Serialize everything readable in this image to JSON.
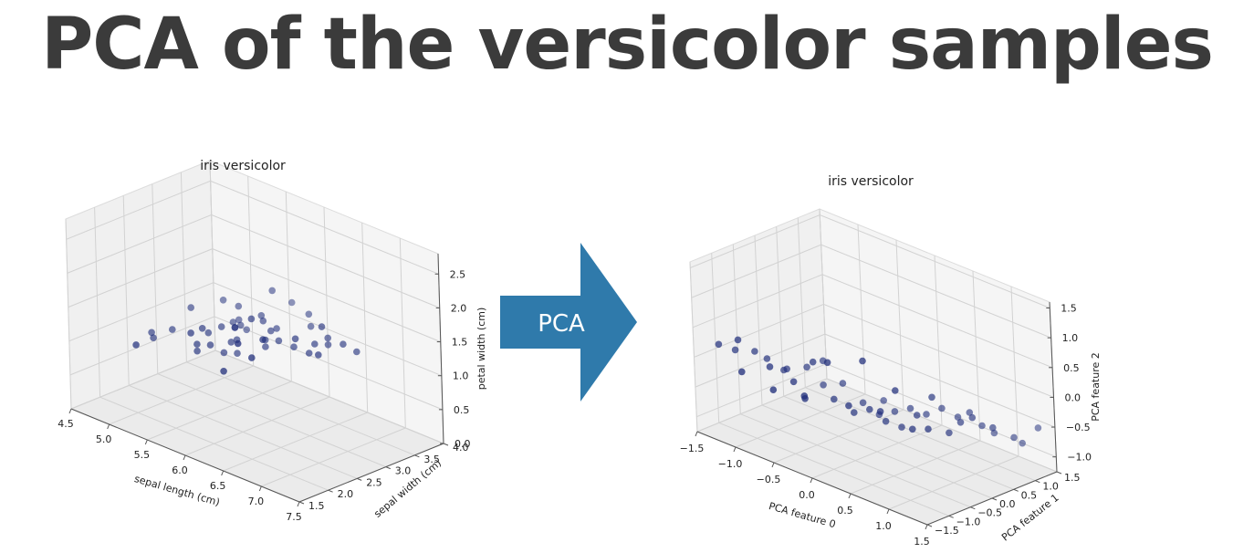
{
  "page": {
    "title": "PCA of the versicolor samples",
    "arrow_label": "PCA",
    "arrow_color": "#2f7aab"
  },
  "chart_data": [
    {
      "type": "scatter",
      "projection": "3d",
      "title": "iris versicolor",
      "xlabel": "sepal length (cm)",
      "ylabel": "sepal width (cm)",
      "zlabel": "petal width (cm)",
      "xlim": [
        4.5,
        7.5
      ],
      "ylim": [
        1.5,
        4.0
      ],
      "zlim": [
        0.0,
        2.8
      ],
      "xticks": [
        "4.5",
        "5.0",
        "5.5",
        "6.0",
        "6.5",
        "7.0",
        "7.5"
      ],
      "yticks": [
        "1.5",
        "2.0",
        "2.5",
        "3.0",
        "3.5",
        "4.0"
      ],
      "zticks": [
        "0.0",
        "0.5",
        "1.0",
        "1.5",
        "2.0",
        "2.5"
      ],
      "grid": true,
      "point_color": "#1f2d7a",
      "points": [
        [
          7.0,
          3.2,
          1.4
        ],
        [
          6.4,
          3.2,
          1.5
        ],
        [
          6.9,
          3.1,
          1.5
        ],
        [
          5.5,
          2.3,
          1.3
        ],
        [
          6.5,
          2.8,
          1.5
        ],
        [
          5.7,
          2.8,
          1.3
        ],
        [
          6.3,
          3.3,
          1.6
        ],
        [
          4.9,
          2.4,
          1.0
        ],
        [
          6.6,
          2.9,
          1.3
        ],
        [
          5.2,
          2.7,
          1.4
        ],
        [
          5.0,
          2.0,
          1.0
        ],
        [
          5.9,
          3.0,
          1.5
        ],
        [
          6.0,
          2.2,
          1.0
        ],
        [
          6.1,
          2.9,
          1.4
        ],
        [
          5.6,
          2.9,
          1.3
        ],
        [
          6.7,
          3.1,
          1.4
        ],
        [
          5.6,
          3.0,
          1.5
        ],
        [
          5.8,
          2.7,
          1.0
        ],
        [
          6.2,
          2.2,
          1.5
        ],
        [
          5.6,
          2.5,
          1.1
        ],
        [
          5.9,
          3.2,
          1.8
        ],
        [
          6.1,
          2.8,
          1.3
        ],
        [
          6.3,
          2.5,
          1.5
        ],
        [
          6.1,
          2.8,
          1.2
        ],
        [
          6.4,
          2.9,
          1.3
        ],
        [
          6.6,
          3.0,
          1.4
        ],
        [
          6.8,
          2.8,
          1.4
        ],
        [
          6.7,
          3.0,
          1.7
        ],
        [
          6.0,
          2.9,
          1.5
        ],
        [
          5.7,
          2.6,
          1.0
        ],
        [
          5.5,
          2.4,
          1.1
        ],
        [
          5.5,
          2.4,
          1.0
        ],
        [
          5.8,
          2.7,
          1.2
        ],
        [
          6.0,
          2.7,
          1.6
        ],
        [
          5.4,
          3.0,
          1.5
        ],
        [
          6.0,
          3.4,
          1.6
        ],
        [
          6.7,
          3.1,
          1.5
        ],
        [
          6.3,
          2.3,
          1.3
        ],
        [
          5.6,
          3.0,
          1.3
        ],
        [
          5.5,
          2.5,
          1.3
        ],
        [
          5.5,
          2.6,
          1.2
        ],
        [
          6.1,
          3.0,
          1.4
        ],
        [
          5.8,
          2.6,
          1.2
        ],
        [
          5.0,
          2.3,
          1.0
        ],
        [
          5.6,
          2.7,
          1.3
        ],
        [
          5.7,
          3.0,
          1.2
        ],
        [
          5.7,
          2.9,
          1.3
        ],
        [
          6.2,
          2.9,
          1.3
        ],
        [
          5.1,
          2.5,
          1.1
        ],
        [
          5.7,
          2.8,
          1.3
        ]
      ]
    },
    {
      "type": "scatter",
      "projection": "3d",
      "title": "iris versicolor",
      "xlabel": "PCA feature 0",
      "ylabel": "PCA feature 1",
      "zlabel": "PCA feature 2",
      "xlim": [
        -1.5,
        1.5
      ],
      "ylim": [
        -1.5,
        1.5
      ],
      "zlim": [
        -1.25,
        1.6
      ],
      "xticks": [
        "−1.5",
        "−1.0",
        "−0.5",
        "0.0",
        "0.5",
        "1.0",
        "1.5"
      ],
      "yticks": [
        "−1.5",
        "−1.0",
        "−0.5",
        "0.0",
        "0.5",
        "1.0",
        "1.5"
      ],
      "zticks": [
        "−1.0",
        "−0.5",
        "0.0",
        "0.5",
        "1.0",
        "1.5"
      ],
      "grid": true,
      "point_color": "#1f2d7a",
      "points": [
        [
          -1.4,
          -1.1,
          0.15
        ],
        [
          -1.3,
          -0.9,
          0.05
        ],
        [
          -1.2,
          -1.0,
          0.3
        ],
        [
          -1.1,
          -0.8,
          0.1
        ],
        [
          -1.05,
          -1.2,
          -0.1
        ],
        [
          -1.0,
          -0.7,
          0.0
        ],
        [
          -0.9,
          -0.5,
          -0.2
        ],
        [
          -0.85,
          -0.9,
          0.0
        ],
        [
          -0.8,
          -0.6,
          -0.1
        ],
        [
          -0.7,
          -1.1,
          -0.25
        ],
        [
          -0.65,
          -0.4,
          -0.05
        ],
        [
          -0.6,
          -0.8,
          -0.15
        ],
        [
          -0.5,
          -0.3,
          -0.3
        ],
        [
          -0.45,
          -0.6,
          0.2
        ],
        [
          -0.4,
          -0.9,
          -0.3
        ],
        [
          -0.3,
          -0.2,
          -0.2
        ],
        [
          -0.25,
          -0.5,
          -0.35
        ],
        [
          -0.2,
          -0.7,
          0.35
        ],
        [
          -0.1,
          -0.1,
          -0.45
        ],
        [
          -0.05,
          -0.4,
          -0.5
        ],
        [
          0.0,
          -0.6,
          -0.3
        ],
        [
          0.05,
          0.0,
          -0.6
        ],
        [
          0.1,
          -0.3,
          -0.4
        ],
        [
          0.15,
          -0.5,
          0.5
        ],
        [
          0.2,
          0.1,
          -0.5
        ],
        [
          0.25,
          -0.2,
          -0.55
        ],
        [
          0.3,
          -0.4,
          -0.3
        ],
        [
          0.35,
          0.2,
          -0.4
        ],
        [
          0.4,
          -0.1,
          -0.6
        ],
        [
          0.45,
          -0.3,
          0.1
        ],
        [
          0.5,
          0.3,
          -0.45
        ],
        [
          0.55,
          0.0,
          -0.35
        ],
        [
          0.6,
          -0.2,
          -0.5
        ],
        [
          0.65,
          0.4,
          -0.3
        ],
        [
          0.7,
          0.1,
          0.0
        ],
        [
          0.75,
          -0.1,
          -0.45
        ],
        [
          0.8,
          0.5,
          -0.4
        ],
        [
          0.85,
          0.2,
          -0.55
        ],
        [
          0.9,
          0.6,
          -0.3
        ],
        [
          0.95,
          0.3,
          -0.35
        ],
        [
          1.0,
          0.7,
          -0.5
        ],
        [
          1.05,
          0.4,
          -0.25
        ],
        [
          1.1,
          0.8,
          -0.6
        ],
        [
          1.2,
          0.6,
          -0.4
        ],
        [
          1.3,
          0.9,
          -0.6
        ],
        [
          1.35,
          1.0,
          -0.7
        ],
        [
          1.45,
          1.2,
          -0.45
        ],
        [
          -0.55,
          -0.2,
          0.05
        ],
        [
          0.0,
          0.2,
          -0.45
        ],
        [
          -0.35,
          -1.0,
          -0.2
        ]
      ]
    }
  ]
}
